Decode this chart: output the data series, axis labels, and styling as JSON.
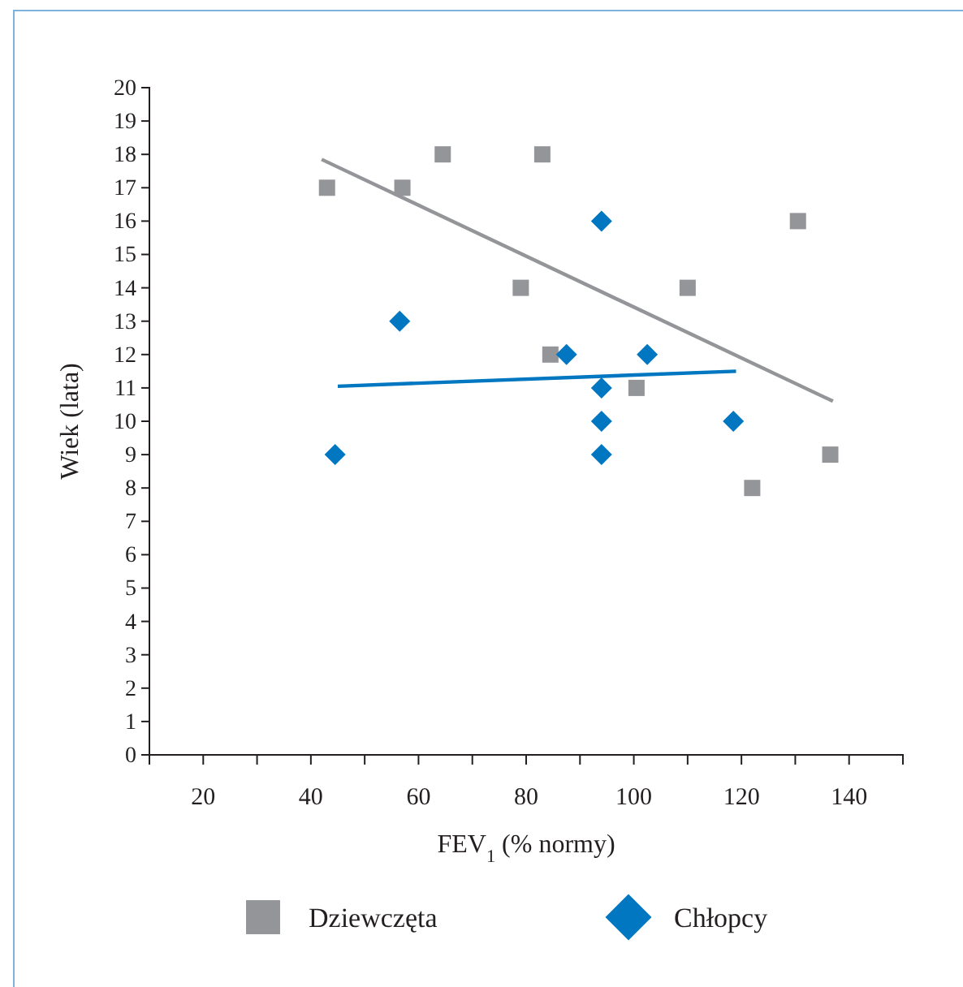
{
  "chart_data": {
    "type": "scatter",
    "xlabel": "FEV$_{1}$ (% normy)",
    "ylabel": "Wiek (lata)",
    "xlim": [
      10,
      150
    ],
    "xticks": [
      {
        "value": 10,
        "label": null
      },
      20,
      {
        "value": 30,
        "label": null
      },
      40,
      {
        "value": 50,
        "label": null
      },
      60,
      {
        "value": 70,
        "label": null
      },
      80,
      {
        "value": 90,
        "label": null
      },
      100,
      {
        "value": 110,
        "label": null
      },
      120,
      {
        "value": 130,
        "label": null
      },
      140,
      {
        "value": 150,
        "label": null
      }
    ],
    "ylim": [
      0,
      20
    ],
    "yticks": [
      0,
      1,
      2,
      3,
      4,
      5,
      6,
      7,
      8,
      9,
      10,
      11,
      12,
      13,
      14,
      15,
      16,
      17,
      18,
      19,
      20
    ],
    "grid": false,
    "legend": "bottom",
    "series": [
      {
        "name": "Dziewczęta",
        "color": "#939598",
        "marker": "square",
        "x": [
          43,
          57,
          64.5,
          83,
          79,
          84.5,
          100.5,
          110,
          122,
          130.5,
          136.5
        ],
        "values": [
          17,
          17,
          18,
          18,
          14,
          12,
          11,
          14,
          8,
          16,
          9
        ]
      },
      {
        "name": "Chłopcy",
        "color": "#0077c0",
        "marker": "diamond",
        "x": [
          44.5,
          56.5,
          87.5,
          94,
          94,
          94,
          94,
          102.5,
          118.5
        ],
        "values": [
          9,
          13,
          12,
          16,
          11,
          10,
          9,
          12,
          10
        ]
      },
      {
        "type": "line",
        "color": "#939598",
        "marker": "none",
        "x": [
          42,
          137
        ],
        "values": [
          17.85,
          10.6
        ]
      },
      {
        "type": "line",
        "color": "#0077c0",
        "marker": "none",
        "x": [
          45,
          119
        ],
        "values": [
          11.05,
          11.5
        ]
      }
    ]
  }
}
